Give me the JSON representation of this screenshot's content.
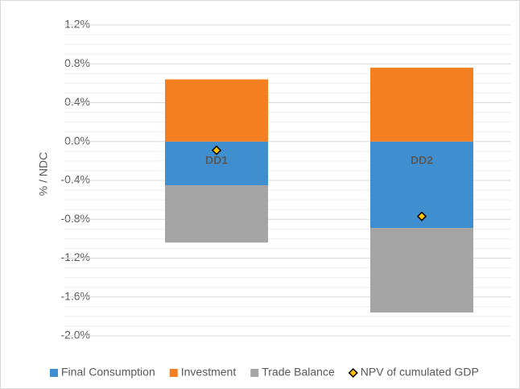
{
  "chart_data": {
    "type": "stacked_bar",
    "y_label": "% / NDC",
    "categories": [
      "DD1",
      "DD2"
    ],
    "series": [
      {
        "name": "Final Consumption",
        "color": "#3e8ed0",
        "values": [
          -0.45,
          -0.89
        ]
      },
      {
        "name": "Investment",
        "color": "#f47f20",
        "values": [
          0.64,
          0.76
        ]
      },
      {
        "name": "Trade Balance",
        "color": "#a5a5a5",
        "values": [
          -0.59,
          -0.87
        ]
      },
      {
        "name": "NPV of cumulated GDP",
        "type": "marker",
        "color": "#ffc000",
        "values": [
          -0.09,
          -0.77
        ]
      }
    ],
    "ylim": [
      -2.0,
      1.2
    ],
    "yticks": [
      {
        "value": -2.0,
        "label": "-2.0%"
      },
      {
        "value": -1.6,
        "label": "-1.6%"
      },
      {
        "value": -1.2,
        "label": "-1.2%"
      },
      {
        "value": -0.8,
        "label": "-0.8%"
      },
      {
        "value": -0.4,
        "label": "-0.4%"
      },
      {
        "value": 0.0,
        "label": "0.0%"
      },
      {
        "value": 0.4,
        "label": "0.4%"
      },
      {
        "value": 0.8,
        "label": "0.8%"
      },
      {
        "value": 1.2,
        "label": "1.2%"
      }
    ],
    "grid": true,
    "legend": "bottom"
  }
}
